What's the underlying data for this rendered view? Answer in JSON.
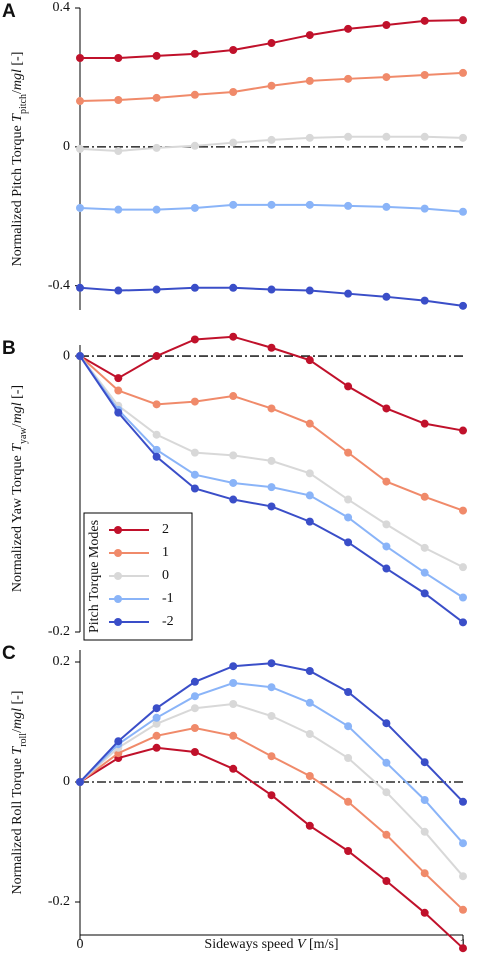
{
  "chart_data": [
    {
      "type": "line",
      "panel": "A",
      "ylabel": [
        "Normalized Pitch Torque ",
        "T",
        "pitch",
        "/",
        "mgl",
        " [-]"
      ],
      "x": [
        0,
        0.1,
        0.2,
        0.3,
        0.4,
        0.5,
        0.6,
        0.7,
        0.8,
        0.9,
        1
      ],
      "xlim": [
        0,
        1
      ],
      "ylim": [
        -0.47,
        0.4
      ],
      "yticks": [
        0.4,
        0,
        -0.4
      ],
      "reference_line": 0,
      "series": [
        {
          "name": "2",
          "color": "#c0112b",
          "values": [
            0.256,
            0.256,
            0.262,
            0.268,
            0.279,
            0.299,
            0.322,
            0.34,
            0.351,
            0.363,
            0.365
          ]
        },
        {
          "name": "1",
          "color": "#f08a6a",
          "values": [
            0.132,
            0.135,
            0.141,
            0.15,
            0.158,
            0.176,
            0.19,
            0.196,
            0.201,
            0.207,
            0.213
          ]
        },
        {
          "name": "0",
          "color": "#d8d8d8",
          "values": [
            -0.006,
            -0.012,
            -0.003,
            0.003,
            0.012,
            0.02,
            0.026,
            0.029,
            0.029,
            0.029,
            0.026
          ]
        },
        {
          "name": "-1",
          "color": "#8ab4f8",
          "values": [
            -0.176,
            -0.181,
            -0.181,
            -0.176,
            -0.167,
            -0.167,
            -0.167,
            -0.17,
            -0.173,
            -0.178,
            -0.187
          ]
        },
        {
          "name": "-2",
          "color": "#3a4ec8",
          "values": [
            -0.406,
            -0.414,
            -0.411,
            -0.406,
            -0.406,
            -0.411,
            -0.414,
            -0.423,
            -0.432,
            -0.443,
            -0.458
          ]
        }
      ]
    },
    {
      "type": "line",
      "panel": "B",
      "ylabel": [
        "Normalized Yaw Torque ",
        "T",
        "yaw",
        "/",
        "mgl",
        " [-]"
      ],
      "x": [
        0,
        0.1,
        0.2,
        0.3,
        0.4,
        0.5,
        0.6,
        0.7,
        0.8,
        0.9,
        1
      ],
      "xlim": [
        0,
        1
      ],
      "ylim": [
        -0.2,
        0.008
      ],
      "yticks": [
        0,
        -0.2
      ],
      "reference_line": 0,
      "legend": "lower left",
      "legend_title": "Pitch Torque Modes",
      "series": [
        {
          "name": "2",
          "color": "#c0112b",
          "values": [
            0,
            -0.016,
            0,
            0.012,
            0.014,
            0.006,
            -0.003,
            -0.022,
            -0.038,
            -0.049,
            -0.054
          ]
        },
        {
          "name": "1",
          "color": "#f08a6a",
          "values": [
            0,
            -0.025,
            -0.035,
            -0.033,
            -0.029,
            -0.038,
            -0.049,
            -0.07,
            -0.091,
            -0.102,
            -0.112
          ]
        },
        {
          "name": "0",
          "color": "#d8d8d8",
          "values": [
            0,
            -0.036,
            -0.057,
            -0.07,
            -0.072,
            -0.076,
            -0.085,
            -0.104,
            -0.122,
            -0.139,
            -0.153
          ]
        },
        {
          "name": "-1",
          "color": "#8ab4f8",
          "values": [
            0,
            -0.039,
            -0.068,
            -0.086,
            -0.092,
            -0.095,
            -0.101,
            -0.117,
            -0.138,
            -0.157,
            -0.175
          ]
        },
        {
          "name": "-2",
          "color": "#3a4ec8",
          "values": [
            0,
            -0.041,
            -0.073,
            -0.096,
            -0.104,
            -0.109,
            -0.12,
            -0.135,
            -0.154,
            -0.172,
            -0.193
          ]
        }
      ]
    },
    {
      "type": "line",
      "panel": "C",
      "ylabel": [
        "Normalized Roll Torque ",
        "T",
        "roll",
        "/",
        "mgl",
        " [-]"
      ],
      "xlabel": [
        "Sideways speed ",
        "V",
        " [m/s]"
      ],
      "x": [
        0,
        0.1,
        0.2,
        0.3,
        0.4,
        0.5,
        0.6,
        0.7,
        0.8,
        0.9,
        1
      ],
      "xlim": [
        0,
        1
      ],
      "xticks": [
        0,
        1
      ],
      "ylim": [
        -0.255,
        0.22
      ],
      "yticks": [
        0.2,
        0,
        -0.2
      ],
      "reference_line": 0,
      "series": [
        {
          "name": "2",
          "color": "#c0112b",
          "values": [
            0,
            0.04,
            0.057,
            0.05,
            0.022,
            -0.022,
            -0.073,
            -0.115,
            -0.165,
            -0.218,
            -0.277
          ]
        },
        {
          "name": "1",
          "color": "#f08a6a",
          "values": [
            0,
            0.048,
            0.077,
            0.09,
            0.077,
            0.043,
            0.01,
            -0.033,
            -0.088,
            -0.152,
            -0.213
          ]
        },
        {
          "name": "0",
          "color": "#d8d8d8",
          "values": [
            0,
            0.057,
            0.097,
            0.123,
            0.13,
            0.11,
            0.08,
            0.04,
            -0.017,
            -0.083,
            -0.157
          ]
        },
        {
          "name": "-1",
          "color": "#8ab4f8",
          "values": [
            0,
            0.063,
            0.107,
            0.143,
            0.165,
            0.158,
            0.132,
            0.093,
            0.032,
            -0.03,
            -0.102
          ]
        },
        {
          "name": "-2",
          "color": "#3a4ec8",
          "values": [
            0,
            0.068,
            0.123,
            0.167,
            0.193,
            0.198,
            0.185,
            0.15,
            0.098,
            0.033,
            -0.033
          ]
        }
      ]
    }
  ]
}
